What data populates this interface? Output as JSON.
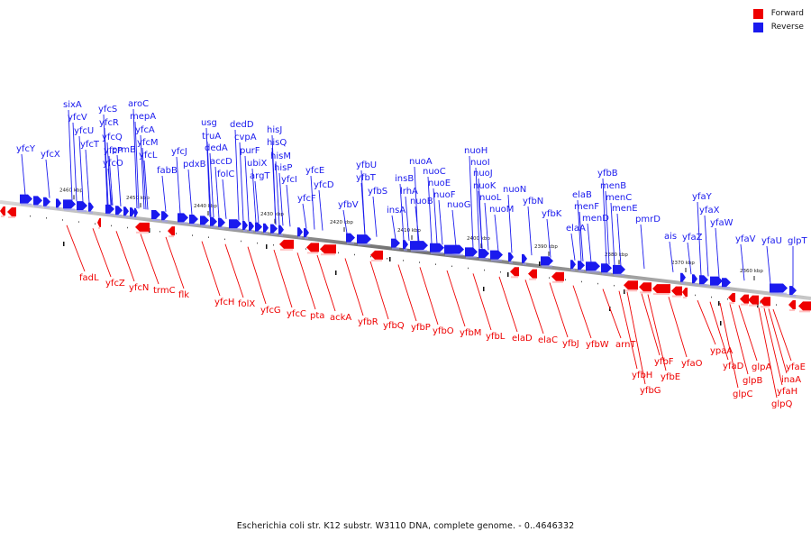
{
  "title": "Escherichia coli str. K12 substr. W3110 DNA, complete genome. - 0..4646332",
  "legend": [
    {
      "label": "Forward",
      "color": "#ee0000"
    },
    {
      "label": "Reverse",
      "color": "#1a1aee"
    }
  ],
  "colors": {
    "forward": "#ee0000",
    "reverse": "#1a1aee",
    "backbone": "#808080"
  },
  "scale_labels": [
    "2460 kbp",
    "2450 kbp",
    "2440 kbp",
    "2430 kbp",
    "2420 kbp",
    "2410 kbp",
    "2400 kbp",
    "2390 kbp",
    "2380 kbp",
    "2370 kbp",
    "2360 kbp"
  ],
  "reverse_genes": [
    "yfcY",
    "yfcX",
    "sixA",
    "yfcV",
    "yfcU",
    "yfcT",
    "yfcS",
    "yfcR",
    "yfcQ",
    "yfcP",
    "yfcO",
    "prmB",
    "aroC",
    "mepA",
    "yfcA",
    "yfcM",
    "yfcL",
    "fabB",
    "yfcJ",
    "pdxB",
    "usg",
    "truA",
    "dedA",
    "accD",
    "folC",
    "dedD",
    "cvpA",
    "purF",
    "ubiX",
    "argT",
    "hisJ",
    "hisQ",
    "hisM",
    "hisP",
    "yfcI",
    "yfcF",
    "yfcE",
    "yfcD",
    "yfbV",
    "yfbU",
    "yfbT",
    "yfbS",
    "insA",
    "insB",
    "lrhA",
    "nuoA",
    "nuoB",
    "nuoC",
    "nuoE",
    "nuoF",
    "nuoG",
    "nuoH",
    "nuoI",
    "nuoJ",
    "nuoK",
    "nuoL",
    "nuoM",
    "nuoN",
    "yfbN",
    "yfbK",
    "elaA",
    "elaB",
    "menF",
    "menD",
    "menB",
    "yfbB",
    "menC",
    "menE",
    "pmrD",
    "ais",
    "yfaZ",
    "yfaY",
    "yfaX",
    "yfaW",
    "yfaV",
    "yfaU",
    "glpT"
  ],
  "forward_genes": [
    "fadL",
    "yfcZ",
    "yfcN",
    "trmC",
    "flk",
    "yfcH",
    "folX",
    "yfcG",
    "yfcC",
    "pta",
    "ackA",
    "yfbR",
    "yfbQ",
    "yfbP",
    "yfbO",
    "yfbM",
    "yfbL",
    "elaD",
    "elaC",
    "yfbJ",
    "yfbW",
    "arnT",
    "yfbH",
    "yfbG",
    "yfbF",
    "yfbE",
    "yfaO",
    "ypaA",
    "yfaD",
    "glpC",
    "glpB",
    "glpA",
    "yfaE",
    "yfaH",
    "inaA",
    "glpQ"
  ]
}
